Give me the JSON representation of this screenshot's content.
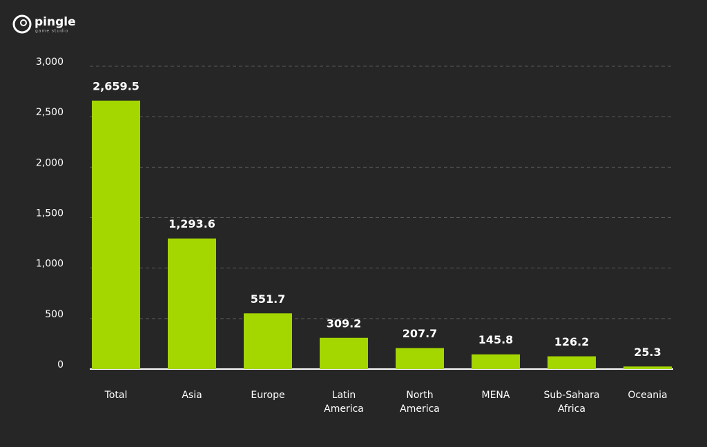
{
  "brand": {
    "name": "pingle",
    "tagline": "game studio"
  },
  "chart_data": {
    "type": "bar",
    "categories": [
      "Total",
      "Asia",
      "Europe",
      "Latin America",
      "North America",
      "MENA",
      "Sub-Sahara Africa",
      "Oceania"
    ],
    "values": [
      2659.5,
      1293.6,
      551.7,
      309.2,
      207.7,
      145.8,
      126.2,
      25.3
    ],
    "value_labels": [
      "2,659.5",
      "1,293.6",
      "551.7",
      "309.2",
      "207.7",
      "145.8",
      "126.2",
      "25.3"
    ],
    "color": "#a4d600",
    "ylim": [
      0,
      3000
    ],
    "yticks": [
      0,
      500,
      {
        "value": 1000,
        "label": "1,000"
      },
      {
        "value": 1500,
        "label": "1,500"
      },
      {
        "value": 2000,
        "label": "2,000"
      },
      {
        "value": 2500,
        "label": "2,500"
      },
      {
        "value": 3000,
        "label": "3,000"
      }
    ],
    "grid": true
  }
}
